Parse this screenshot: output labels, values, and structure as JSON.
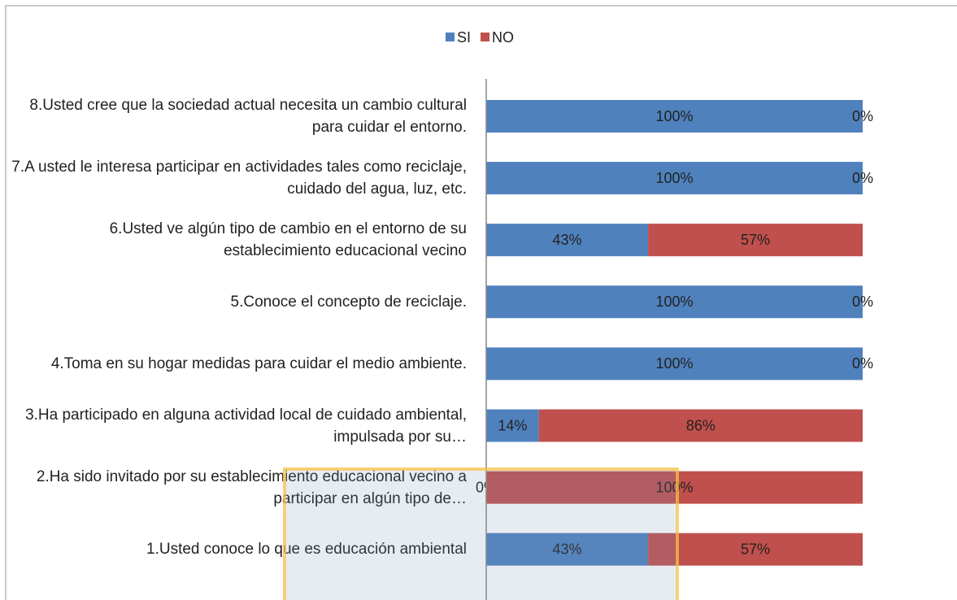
{
  "chart_data": {
    "type": "stacked_bar_horizontal",
    "categories": [
      "8.Usted cree que la sociedad actual necesita un cambio cultural para cuidar el entorno.",
      "7.A usted le interesa participar en actividades tales como reciclaje, cuidado del agua, luz, etc.",
      "6.Usted ve algún tipo de cambio en el entorno de su establecimiento educacional vecino",
      "5.Conoce el concepto de reciclaje.",
      "4.Toma en su hogar medidas para cuidar el medio ambiente.",
      "3.Ha participado en alguna actividad local de cuidado ambiental, impulsada por su…",
      "2.Ha sido invitado por su establecimiento educacional vecino a participar en algún tipo de…",
      "1.Usted conoce lo que es educación ambiental"
    ],
    "series": [
      {
        "name": "SI",
        "color": "#4f81bd",
        "values": [
          100,
          100,
          43,
          100,
          100,
          14,
          0,
          43
        ],
        "value_labels": [
          "100%",
          "100%",
          "43%",
          "100%",
          "100%",
          "14%",
          "0%",
          "43%"
        ]
      },
      {
        "name": "NO",
        "color": "#c0504d",
        "values": [
          0,
          0,
          57,
          0,
          0,
          86,
          100,
          57
        ],
        "value_labels": [
          "0%",
          "0%",
          "57%",
          "0%",
          "0%",
          "86%",
          "100%",
          "57%"
        ]
      }
    ],
    "legend": "top"
  }
}
